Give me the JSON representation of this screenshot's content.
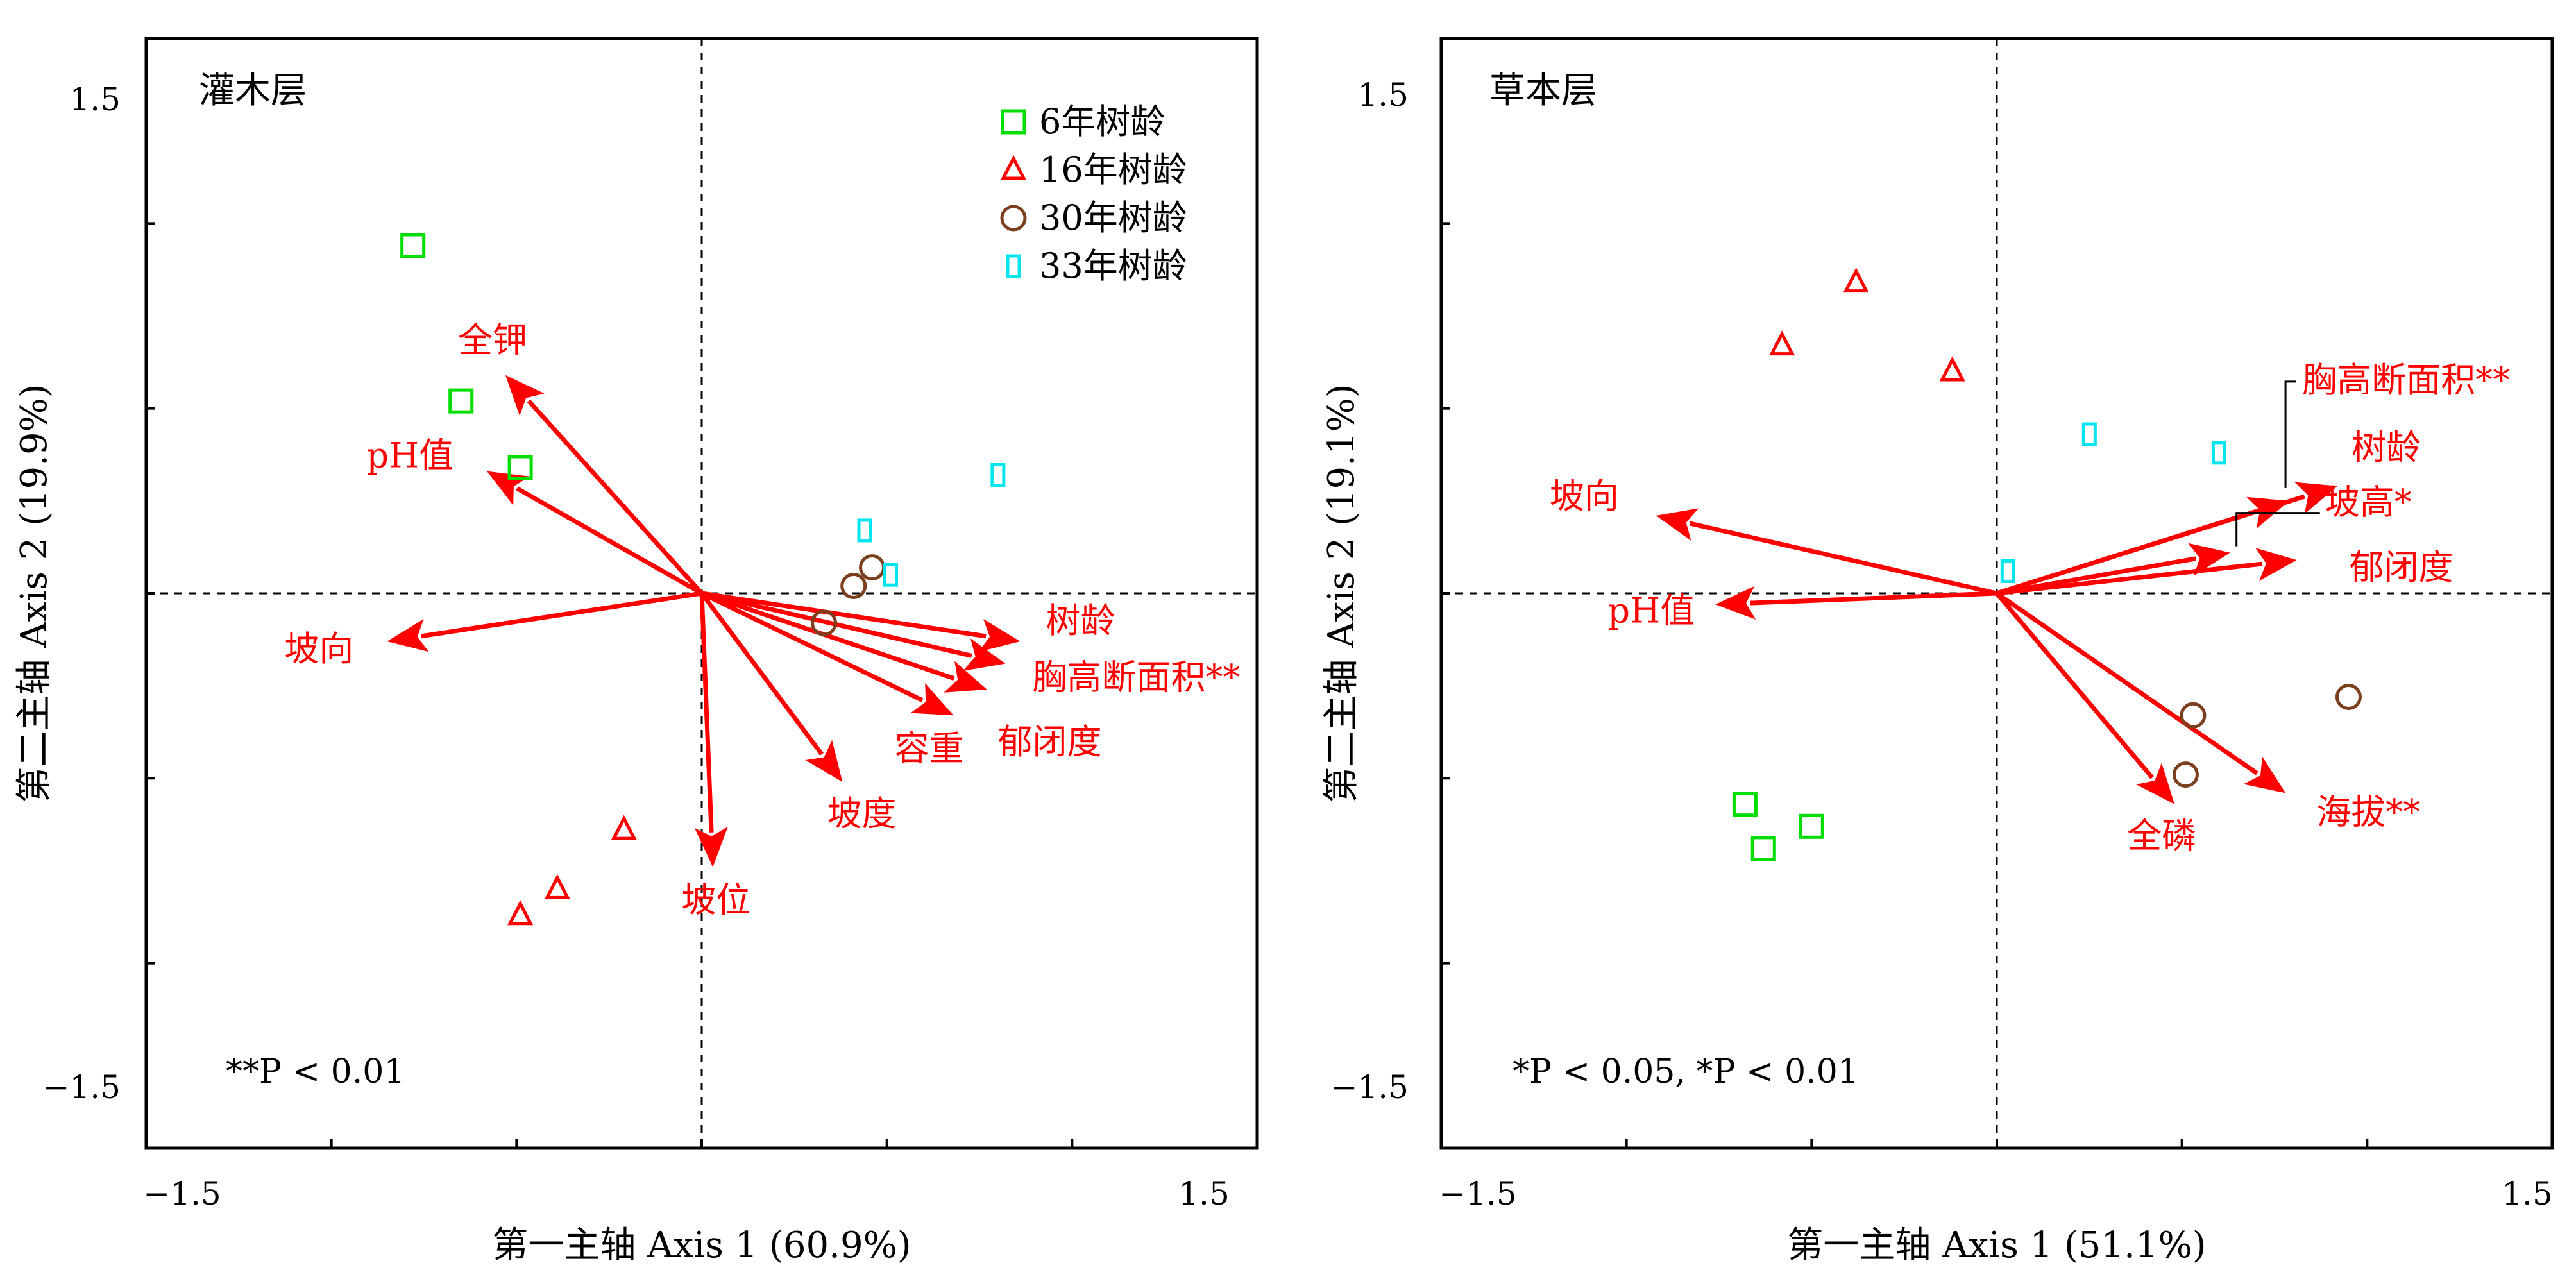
{
  "colors": {
    "arrow": "#ff0000",
    "age_6": "#00dd00",
    "age_16": "#ff0000",
    "age_30": "#7b3f1e",
    "age_33": "#00e5ee"
  },
  "chart_data": [
    {
      "type": "scatter",
      "subtype": "rda-biplot",
      "panel_title": "灌木层",
      "xlabel": "第一主轴 Axis 1 (60.9%)",
      "ylabel": "第二主轴 Axis 2 (19.9%)",
      "xlim": [
        -1.5,
        1.5
      ],
      "ylim": [
        -1.5,
        1.5
      ],
      "x_tick_labels": [
        "−1.5",
        "1.5"
      ],
      "y_tick_labels": [
        "1.5",
        "−1.5"
      ],
      "zero_lines": true,
      "legend": {
        "placement": "top-right",
        "entries": [
          {
            "label": "6年树龄",
            "marker": "square",
            "color_key": "age_6"
          },
          {
            "label": "16年树龄",
            "marker": "triangle",
            "color_key": "age_16"
          },
          {
            "label": "30年树龄",
            "marker": "circle",
            "color_key": "age_30"
          },
          {
            "label": "33年树龄",
            "marker": "rect",
            "color_key": "age_33"
          }
        ]
      },
      "footnote": "**P < 0.01",
      "vectors": [
        {
          "label": "全钾",
          "x": -0.53,
          "y": 0.59
        },
        {
          "label": "pH值",
          "x": -0.58,
          "y": 0.33
        },
        {
          "label": "坡向",
          "x": -0.85,
          "y": -0.13
        },
        {
          "label": "坡位",
          "x": 0.03,
          "y": -0.74
        },
        {
          "label": "坡度",
          "x": 0.38,
          "y": -0.51
        },
        {
          "label": "容重",
          "x": 0.68,
          "y": -0.33
        },
        {
          "label": "郁闭度",
          "x": 0.77,
          "y": -0.26
        },
        {
          "label": "胸高断面积**",
          "x": 0.82,
          "y": -0.19
        },
        {
          "label": "树龄",
          "x": 0.86,
          "y": -0.13
        }
      ],
      "series": [
        {
          "name": "6年树龄",
          "marker": "square",
          "points": [
            [
              -0.78,
              0.94
            ],
            [
              -0.65,
              0.52
            ],
            [
              -0.49,
              0.34
            ]
          ]
        },
        {
          "name": "16年树龄",
          "marker": "triangle",
          "points": [
            [
              -0.21,
              -0.64
            ],
            [
              -0.39,
              -0.8
            ],
            [
              -0.49,
              -0.87
            ]
          ]
        },
        {
          "name": "30年树龄",
          "marker": "circle",
          "points": [
            [
              0.46,
              0.07
            ],
            [
              0.41,
              0.02
            ],
            [
              0.33,
              -0.08
            ]
          ]
        },
        {
          "name": "33年树龄",
          "marker": "rect",
          "points": [
            [
              0.8,
              0.32
            ],
            [
              0.44,
              0.17
            ],
            [
              0.51,
              0.05
            ]
          ]
        }
      ]
    },
    {
      "type": "scatter",
      "subtype": "rda-biplot",
      "panel_title": "草本层",
      "xlabel": "第一主轴 Axis 1 (51.1%)",
      "ylabel": "第二主轴 Axis 2 (19.1%)",
      "xlim": [
        -1.5,
        1.5
      ],
      "ylim": [
        -1.5,
        1.5
      ],
      "x_tick_labels": [
        "−1.5",
        "1.5"
      ],
      "y_tick_labels": [
        "1.5",
        "−1.5"
      ],
      "zero_lines": true,
      "footnote": "*P < 0.05, *P < 0.01",
      "vectors": [
        {
          "label": "坡向",
          "x": -0.92,
          "y": 0.21
        },
        {
          "label": "pH值",
          "x": -0.76,
          "y": -0.03
        },
        {
          "label": "全磷",
          "x": 0.48,
          "y": -0.57
        },
        {
          "label": "海拔**",
          "x": 0.78,
          "y": -0.54
        },
        {
          "label": "郁闭度",
          "x": 0.81,
          "y": 0.09
        },
        {
          "label": "坡高*",
          "x": 0.63,
          "y": 0.11
        },
        {
          "label": "树龄",
          "x": 0.92,
          "y": 0.29
        },
        {
          "label": "胸高断面积**",
          "x": 0.79,
          "y": 0.25
        }
      ],
      "series": [
        {
          "name": "6年树龄",
          "marker": "square",
          "points": [
            [
              -0.68,
              -0.57
            ],
            [
              -0.63,
              -0.69
            ],
            [
              -0.5,
              -0.63
            ]
          ]
        },
        {
          "name": "16年树龄",
          "marker": "triangle",
          "points": [
            [
              -0.38,
              0.84
            ],
            [
              -0.58,
              0.67
            ],
            [
              -0.12,
              0.6
            ]
          ]
        },
        {
          "name": "30年树龄",
          "marker": "circle",
          "points": [
            [
              0.53,
              -0.33
            ],
            [
              0.51,
              -0.49
            ],
            [
              0.95,
              -0.28
            ]
          ]
        },
        {
          "name": "33年树龄",
          "marker": "rect",
          "points": [
            [
              0.25,
              0.43
            ],
            [
              0.6,
              0.38
            ],
            [
              0.03,
              0.06
            ]
          ]
        }
      ]
    }
  ]
}
